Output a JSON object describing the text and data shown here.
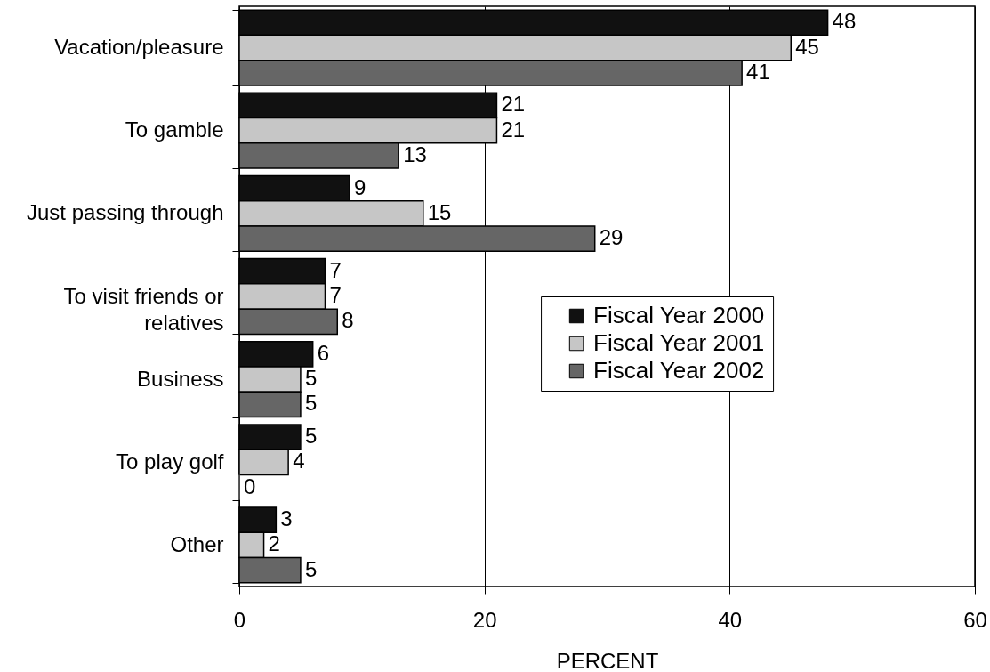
{
  "chart_data": {
    "type": "bar",
    "orientation": "horizontal",
    "xlabel": "PERCENT",
    "categories": [
      "Vacation/pleasure",
      "To gamble",
      "Just passing through",
      "To visit friends or relatives",
      "Business",
      "To play golf",
      "Other"
    ],
    "series": [
      {
        "name": "Fiscal Year 2000",
        "color": "#111111",
        "values": [
          48,
          21,
          9,
          7,
          6,
          5,
          3
        ]
      },
      {
        "name": "Fiscal Year 2001",
        "color": "#c6c6c6",
        "values": [
          45,
          21,
          15,
          7,
          5,
          4,
          2
        ]
      },
      {
        "name": "Fiscal Year 2002",
        "color": "#666666",
        "values": [
          41,
          13,
          29,
          8,
          5,
          0,
          5
        ]
      }
    ],
    "xlim": [
      0,
      60
    ],
    "xticks": [
      0,
      20,
      40,
      60
    ],
    "grid": "x",
    "legend": "center",
    "data_labels": true
  }
}
